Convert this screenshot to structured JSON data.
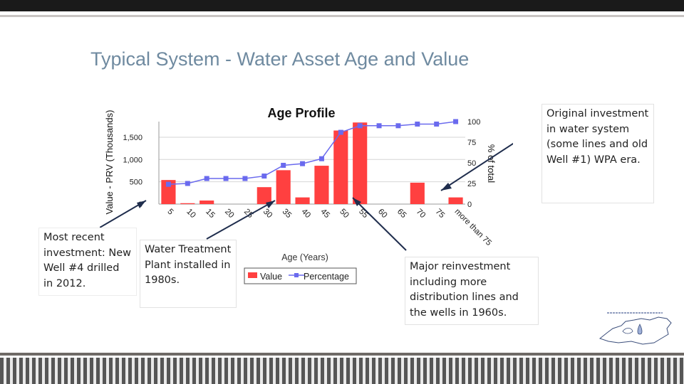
{
  "slide": {
    "title": "Typical System - Water Asset Age and Value"
  },
  "colors": {
    "title": "#6f8aa0",
    "bar": "#ff4040",
    "line": "#6a6aee",
    "top_bar": "#1a1a1a",
    "bottom_band": "#565656"
  },
  "chart_data": {
    "type": "bar",
    "title": "Age Profile",
    "xlabel": "Age (Years)",
    "ylabel": "Value - PRV  (Thousands)",
    "y2label": "% of total",
    "categories": [
      "5",
      "10",
      "15",
      "20",
      "25",
      "30",
      "35",
      "40",
      "45",
      "50",
      "55",
      "60",
      "65",
      "70",
      "75",
      "more than 75"
    ],
    "y_ticks": [
      "0",
      "500",
      "1,000",
      "1,500"
    ],
    "y2_ticks": [
      "0",
      "25",
      "50",
      "75",
      "100"
    ],
    "ylim": [
      0,
      1850
    ],
    "y2lim": [
      0,
      100
    ],
    "grid": true,
    "legend_position": "bottom",
    "series": [
      {
        "name": "Value",
        "kind": "bar",
        "axis": "left",
        "values": [
          540,
          20,
          80,
          0,
          0,
          380,
          760,
          150,
          860,
          1650,
          1830,
          0,
          0,
          480,
          0,
          150
        ]
      },
      {
        "name": "Percentage",
        "kind": "line",
        "axis": "right",
        "values": [
          24,
          25,
          31,
          31,
          31,
          34,
          47,
          49,
          55,
          87,
          95,
          95,
          95,
          97,
          97,
          100
        ]
      }
    ]
  },
  "callouts": {
    "original": "Original investment in water system (some lines and old Well #1) WPA era.",
    "recent": "Most recent investment: New Well #4 drilled in 2012.",
    "wtp": "Water Treatment Plant installed in 1980s.",
    "major": "Major reinvestment including more distribution lines and the wells in 1960s."
  },
  "logo": {
    "name": "state-outline-logo"
  }
}
